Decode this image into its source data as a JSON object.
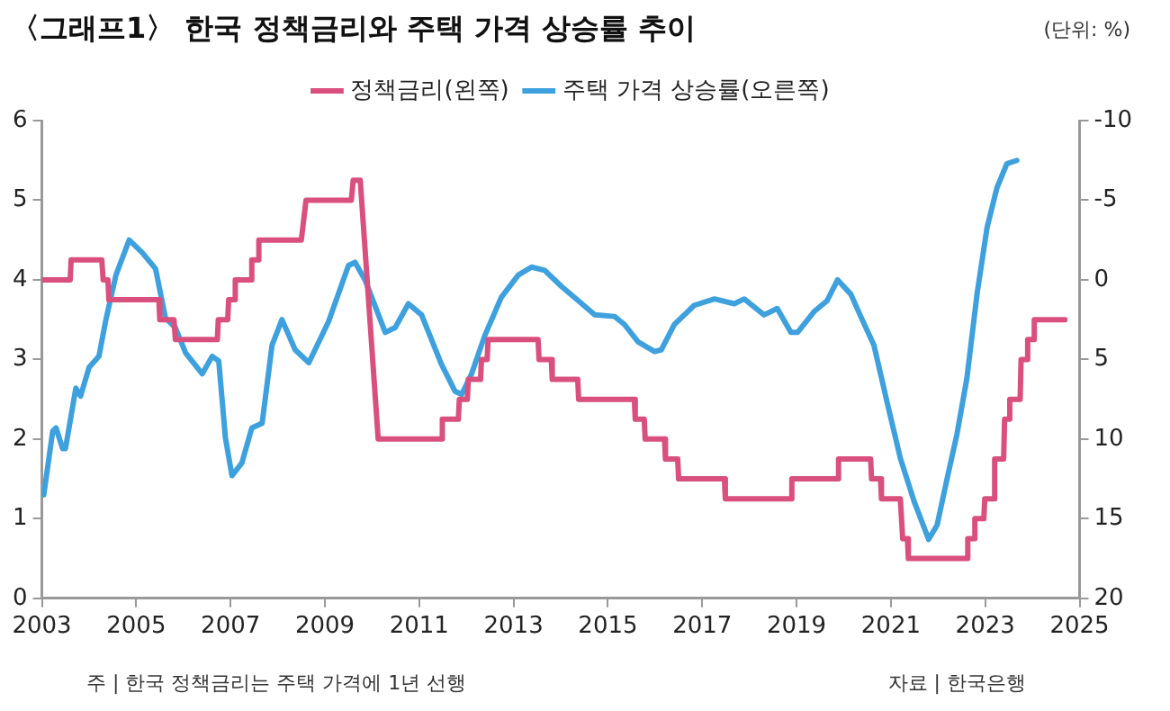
{
  "chart_data": {
    "type": "line",
    "title": "〈그래프1〉 한국 정책금리와 주택 가격 상승률 추이",
    "annotations": [
      "(단위: %)",
      "주 | 한국 정책금리는 주택 가격에 1년 선행",
      "자료 | 한국은행"
    ],
    "xlim": [
      2003,
      2025
    ],
    "xticks": [
      2003,
      2005,
      2007,
      2009,
      2011,
      2013,
      2015,
      2017,
      2019,
      2021,
      2023,
      2025
    ],
    "ylim": [
      0,
      6
    ],
    "yticks": [
      0,
      1,
      2,
      3,
      4,
      5,
      6
    ],
    "y2lim": [
      20,
      -10
    ],
    "y2ticks": [
      -10,
      -5,
      0,
      5,
      10,
      15,
      20
    ],
    "grid": false,
    "legend": "top",
    "marker": "none",
    "line_style": "solid",
    "series": [
      {
        "name": "정책금리(왼쪽)",
        "color": "#d9507e",
        "x": [
          2003,
          2003.6,
          2003.62,
          2004.27,
          2004.3,
          2004.4,
          2004.42,
          2005.48,
          2005.5,
          2005.8,
          2005.83,
          2006.72,
          2006.74,
          2006.94,
          2006.96,
          2007.08,
          2007.1,
          2007.43,
          2007.45,
          2007.58,
          2007.6,
          2008.5,
          2008.6,
          2009.56,
          2009.6,
          2009.75,
          2010.13,
          2011.47,
          2011.49,
          2011.83,
          2011.85,
          2012.02,
          2012.04,
          2012.3,
          2012.32,
          2012.44,
          2012.46,
          2013.52,
          2013.54,
          2013.8,
          2013.82,
          2014.36,
          2014.38,
          2015.56,
          2015.58,
          2015.77,
          2015.79,
          2016.2,
          2016.22,
          2016.48,
          2016.5,
          2017.47,
          2017.49,
          2018.88,
          2018.9,
          2019.87,
          2019.89,
          2020.57,
          2020.59,
          2020.78,
          2020.8,
          2021.2,
          2021.25,
          2021.35,
          2021.37,
          2022.61,
          2022.63,
          2022.76,
          2022.78,
          2022.97,
          2022.99,
          2023.18,
          2023.2,
          2023.39,
          2023.41,
          2023.5,
          2023.52,
          2023.74,
          2023.76,
          2023.88,
          2023.9,
          2024.02,
          2024.04,
          2024.69
        ],
        "values": [
          4.0,
          4.0,
          4.25,
          4.25,
          4.0,
          4.0,
          3.75,
          3.75,
          3.5,
          3.5,
          3.25,
          3.25,
          3.5,
          3.5,
          3.75,
          3.75,
          4.0,
          4.0,
          4.25,
          4.25,
          4.5,
          4.5,
          5.0,
          5.0,
          5.25,
          5.25,
          2.0,
          2.0,
          2.25,
          2.25,
          2.5,
          2.5,
          2.75,
          2.75,
          3.0,
          3.0,
          3.25,
          3.25,
          3.0,
          3.0,
          2.75,
          2.75,
          2.5,
          2.5,
          2.25,
          2.25,
          2.0,
          2.0,
          1.75,
          1.75,
          1.5,
          1.5,
          1.25,
          1.25,
          1.5,
          1.5,
          1.75,
          1.75,
          1.5,
          1.5,
          1.25,
          1.25,
          0.75,
          0.75,
          0.5,
          0.5,
          0.75,
          0.75,
          1.0,
          1.0,
          1.25,
          1.25,
          1.75,
          1.75,
          2.25,
          2.25,
          2.5,
          2.5,
          3.0,
          3.0,
          3.25,
          3.25,
          3.5,
          3.5
        ]
      },
      {
        "name": "주택 가격 상승률(오른쪽)",
        "color": "#3ea1dd",
        "axis": "y2",
        "x": [
          2003.04,
          2003.23,
          2003.3,
          2003.44,
          2003.5,
          2003.72,
          2003.82,
          2004.0,
          2004.21,
          2004.35,
          2004.57,
          2004.85,
          2005.13,
          2005.41,
          2005.62,
          2005.83,
          2006.05,
          2006.4,
          2006.61,
          2006.75,
          2006.89,
          2007.03,
          2007.24,
          2007.45,
          2007.67,
          2007.88,
          2008.09,
          2008.37,
          2008.66,
          2009.08,
          2009.5,
          2009.64,
          2009.85,
          2010.28,
          2010.49,
          2010.77,
          2011.05,
          2011.47,
          2011.76,
          2011.9,
          2012.11,
          2012.39,
          2012.74,
          2013.1,
          2013.38,
          2013.66,
          2014.01,
          2014.37,
          2014.72,
          2015.14,
          2015.35,
          2015.64,
          2015.99,
          2016.13,
          2016.41,
          2016.83,
          2017.26,
          2017.68,
          2017.89,
          2018.31,
          2018.59,
          2018.88,
          2019.02,
          2019.37,
          2019.65,
          2019.87,
          2020.15,
          2020.36,
          2020.64,
          2020.92,
          2021.2,
          2021.49,
          2021.8,
          2021.98,
          2022.19,
          2022.4,
          2022.61,
          2022.83,
          2023.04,
          2023.25,
          2023.46,
          2023.67
        ],
        "values": [
          13.5,
          9.5,
          9.3,
          10.6,
          10.6,
          6.8,
          7.3,
          5.5,
          4.8,
          2.6,
          -0.3,
          -2.5,
          -1.7,
          -0.7,
          2.4,
          3.0,
          4.6,
          5.9,
          4.8,
          5.1,
          9.9,
          12.3,
          11.5,
          9.3,
          9.0,
          4.1,
          2.5,
          4.4,
          5.2,
          2.6,
          -0.9,
          -1.1,
          0.0,
          3.3,
          3.0,
          1.5,
          2.2,
          5.3,
          7.0,
          7.2,
          5.9,
          3.5,
          1.1,
          -0.3,
          -0.8,
          -0.6,
          0.4,
          1.3,
          2.2,
          2.3,
          2.8,
          3.9,
          4.5,
          4.4,
          2.8,
          1.6,
          1.2,
          1.5,
          1.2,
          2.2,
          1.8,
          3.3,
          3.3,
          2.0,
          1.3,
          0.0,
          0.9,
          2.3,
          4.1,
          7.7,
          11.2,
          13.9,
          16.3,
          15.4,
          12.5,
          9.7,
          6.2,
          0.8,
          -3.3,
          -5.8,
          -7.3,
          -7.5
        ]
      }
    ]
  }
}
